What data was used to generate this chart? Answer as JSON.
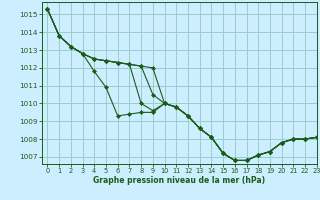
{
  "background_color": "#cceeff",
  "grid_color": "#99cccc",
  "line_color": "#1a5c1a",
  "xlabel": "Graphe pression niveau de la mer (hPa)",
  "xlim": [
    -0.5,
    23
  ],
  "ylim": [
    1006.6,
    1015.7
  ],
  "yticks": [
    1007,
    1008,
    1009,
    1010,
    1011,
    1012,
    1013,
    1014,
    1015
  ],
  "xticks": [
    0,
    1,
    2,
    3,
    4,
    5,
    6,
    7,
    8,
    9,
    10,
    11,
    12,
    13,
    14,
    15,
    16,
    17,
    18,
    19,
    20,
    21,
    22,
    23
  ],
  "series": [
    [
      1015.3,
      1013.8,
      1013.2,
      1012.8,
      1011.8,
      1010.9,
      1009.3,
      1009.4,
      1009.5,
      1009.5,
      1010.0,
      1009.8,
      1009.3,
      1008.6,
      1008.1,
      1007.2,
      1006.8,
      1006.8,
      1007.1,
      1007.3,
      1007.8,
      1008.0,
      1008.0,
      1008.1
    ],
    [
      1015.3,
      1013.8,
      1013.2,
      1012.8,
      1012.5,
      1012.4,
      1012.3,
      1012.2,
      1010.0,
      1009.6,
      1010.0,
      1009.8,
      1009.3,
      1008.6,
      1008.1,
      1007.2,
      1006.8,
      1006.8,
      1007.1,
      1007.3,
      1007.8,
      1008.0,
      1008.0,
      1008.1
    ],
    [
      1015.3,
      1013.8,
      1013.2,
      1012.8,
      1012.5,
      1012.4,
      1012.3,
      1012.2,
      1012.1,
      1010.5,
      1010.0,
      1009.8,
      1009.3,
      1008.6,
      1008.1,
      1007.2,
      1006.8,
      1006.8,
      1007.1,
      1007.3,
      1007.8,
      1008.0,
      1008.0,
      1008.1
    ],
    [
      1015.3,
      1013.8,
      1013.2,
      1012.8,
      1012.5,
      1012.4,
      1012.3,
      1012.2,
      1012.1,
      1012.0,
      1010.0,
      1009.8,
      1009.3,
      1008.6,
      1008.1,
      1007.2,
      1006.8,
      1006.8,
      1007.1,
      1007.3,
      1007.8,
      1008.0,
      1008.0,
      1008.1
    ]
  ]
}
